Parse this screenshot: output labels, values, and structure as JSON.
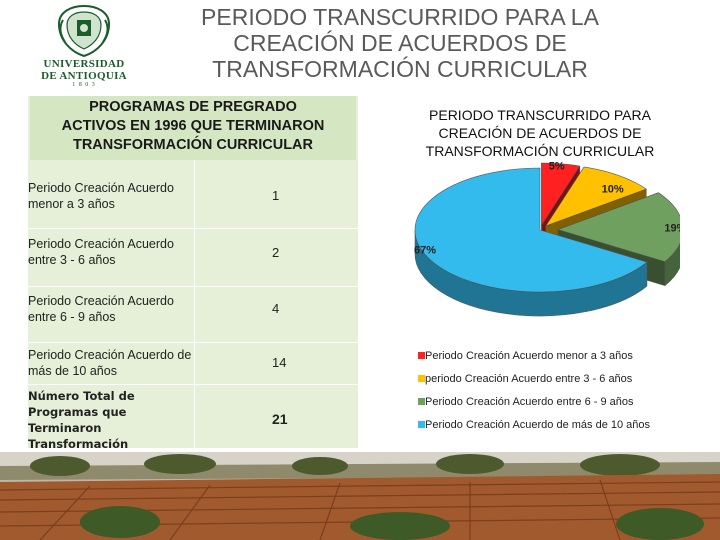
{
  "logo": {
    "line1": "UNIVERSIDAD",
    "line2": "DE ANTIOQUIA",
    "line3": "1 8 0 3"
  },
  "title": {
    "line1": "PERIODO TRANSCURRIDO PARA LA",
    "line2": "CREACIÓN DE ACUERDOS DE",
    "line3": "TRANSFORMACIÓN CURRICULAR"
  },
  "table": {
    "header": {
      "line1": "PROGRAMAS DE PREGRADO",
      "line2": "ACTIVOS EN 1996 QUE TERMINARON",
      "line3": "TRANSFORMACIÓN CURRICULAR"
    },
    "rows": [
      {
        "label": "Periodo Creación Acuerdo menor a 3 años",
        "value": "1"
      },
      {
        "label": "Periodo Creación Acuerdo entre 3 - 6 años",
        "value": "2"
      },
      {
        "label": "Periodo Creación Acuerdo entre 6 - 9 años",
        "value": "4"
      },
      {
        "label": "Periodo Creación Acuerdo de más de 10 años",
        "value": "14"
      }
    ],
    "total": {
      "label": "Número Total de Programas que Terminaron Transformación Curricular",
      "value": "21"
    }
  },
  "chart_data": {
    "type": "pie",
    "title": "PERIODO TRANSCURRIDO PARA CREACIÓN DE ACUERDOS DE TRANSFORMACIÓN CURRICULAR",
    "title_lines": [
      "PERIODO TRANSCURRIDO PARA",
      "CREACIÓN DE ACUERDOS DE",
      "TRANSFORMACIÓN CURRICULAR"
    ],
    "legend_position": "bottom",
    "slices": [
      {
        "legend": "Periodo Creación Acuerdo menor a 3 años",
        "value": 5,
        "label": "5%",
        "color": "#ff2020"
      },
      {
        "legend": "periodo Creación Acuerdo entre 3 - 6 años",
        "value": 10,
        "label": "10%",
        "color": "#ffc000"
      },
      {
        "legend": "Periodo Creación Acuerdo entre 6 - 9 años",
        "value": 19,
        "label": "19%",
        "color": "#70a060"
      },
      {
        "legend": "Periodo Creación Acuerdo de más de 10 años",
        "value": 67,
        "label": "67%",
        "color": "#33bbee"
      }
    ]
  },
  "colors": {
    "title": "#5a5a5a",
    "table_bg": "#e6f0d8",
    "table_header_bg": "#d5e6c3",
    "logo_green": "#1a5c2a"
  },
  "icons": {
    "logo": "university-seal-icon",
    "photo": "campus-photo"
  }
}
